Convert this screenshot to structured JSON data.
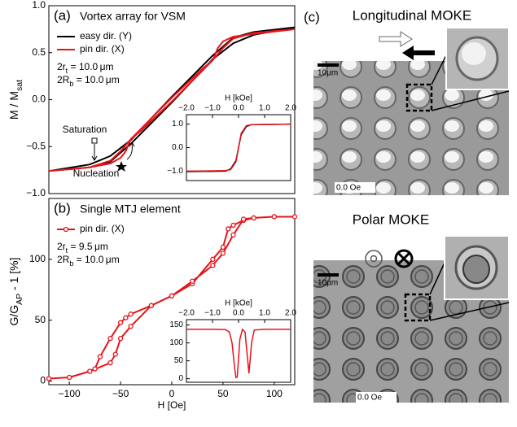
{
  "chart_data": [
    {
      "type": "line",
      "panel": "(a)",
      "title": "Vortex array for VSM",
      "ylabel": [
        "M / M",
        "sat"
      ],
      "xlim": [
        -120,
        120
      ],
      "ylim": [
        -1,
        1
      ],
      "yticks": [
        {
          "value": -1,
          "label": "−1.0"
        },
        {
          "value": -0.5,
          "label": "−0.5"
        },
        {
          "value": 0,
          "label": "0.0"
        },
        {
          "value": 0.5,
          "label": "0.5"
        },
        {
          "value": 1,
          "label": "1.0"
        }
      ],
      "legend": "upper left",
      "notes": [
        [
          "2r",
          "t",
          " = 10.0 μm"
        ],
        [
          "2R",
          "b",
          " = 10.0 μm"
        ]
      ],
      "labels": [
        "Saturation",
        "Nucleation"
      ],
      "series": [
        {
          "name": "easy dir. (Y)",
          "color": "#000000",
          "x": [
            -120,
            -80,
            -60,
            -40,
            -20,
            0,
            20,
            40,
            60,
            80,
            120,
            80,
            60,
            40,
            20,
            0,
            -20,
            -40,
            -60,
            -80,
            -120
          ],
          "values": [
            -0.76,
            -0.72,
            -0.66,
            -0.47,
            -0.25,
            -0.03,
            0.2,
            0.43,
            0.6,
            0.69,
            0.77,
            0.72,
            0.66,
            0.47,
            0.25,
            0.03,
            -0.2,
            -0.43,
            -0.6,
            -0.69,
            -0.76
          ]
        },
        {
          "name": "pin dir. (X)",
          "color": "#e8141b",
          "x": [
            -120,
            -80,
            -60,
            -50,
            -45,
            -40,
            -30,
            0,
            20,
            40,
            50,
            60,
            80,
            120,
            80,
            60,
            50,
            45,
            40,
            30,
            0,
            -20,
            -40,
            -50,
            -60,
            -80,
            -120
          ],
          "values": [
            -0.76,
            -0.72,
            -0.68,
            -0.62,
            -0.55,
            -0.42,
            -0.33,
            -0.02,
            0.2,
            0.42,
            0.55,
            0.65,
            0.71,
            0.75,
            0.7,
            0.67,
            0.62,
            0.55,
            0.42,
            0.33,
            0.02,
            -0.2,
            -0.42,
            -0.55,
            -0.65,
            -0.72,
            -0.76
          ]
        }
      ]
    },
    {
      "type": "line",
      "xlabel": "H [kOe]",
      "xlim": [
        -2,
        2
      ],
      "ylim": [
        -1.4,
        1.4
      ],
      "xticks": [
        {
          "value": -2,
          "label": "−2.0"
        },
        {
          "value": -1,
          "label": "−1.0"
        },
        {
          "value": 0,
          "label": "0.0"
        },
        {
          "value": 1,
          "label": "1.0"
        },
        {
          "value": 2,
          "label": "2.0"
        }
      ],
      "yticks": [
        {
          "value": -1,
          "label": "−1.0"
        },
        {
          "value": 0,
          "label": "0.0"
        },
        {
          "value": 1,
          "label": "1.0"
        }
      ],
      "series": [
        {
          "name": "easy dir. (Y)",
          "color": "#000000",
          "x": [
            -2,
            -0.5,
            -0.3,
            -0.1,
            0,
            0.1,
            0.3,
            0.5,
            2
          ],
          "values": [
            -1.02,
            -1.0,
            -0.9,
            -0.55,
            0,
            0.55,
            0.9,
            0.98,
            1.0
          ]
        },
        {
          "name": "pin dir. (X)",
          "color": "#e8141b",
          "x": [
            -2,
            -0.5,
            -0.3,
            -0.1,
            0,
            0.1,
            0.3,
            0.5,
            2
          ],
          "values": [
            -1.0,
            -0.98,
            -0.93,
            -0.6,
            0,
            0.6,
            0.93,
            0.98,
            1.0
          ]
        }
      ]
    },
    {
      "type": "line",
      "panel": "(b)",
      "title": "Single MTJ element",
      "xlabel": "H [Oe]",
      "ylabel": [
        "G/G",
        "AP",
        " - 1 [%]"
      ],
      "xlim": [
        -120,
        120
      ],
      "ylim": [
        -3,
        150
      ],
      "xticks": [
        {
          "value": -100,
          "label": "−100"
        },
        {
          "value": -50,
          "label": "−50"
        },
        0,
        50,
        100
      ],
      "yticks": [
        0,
        50,
        100
      ],
      "legend": "upper left",
      "markers": true,
      "notes": [
        [
          "2r",
          "t",
          " = 9.5 μm"
        ],
        [
          "2R",
          "b",
          " = 10.0 μm"
        ]
      ],
      "series": [
        {
          "name": "pin dir. (X)",
          "color": "#e8141b",
          "x": [
            -120,
            -100,
            -80,
            -75,
            -70,
            -60,
            -50,
            -45,
            -40,
            -20,
            0,
            20,
            40,
            50,
            55,
            60,
            70,
            80,
            100,
            120,
            100,
            80,
            70,
            60,
            50,
            40,
            20,
            0,
            -20,
            -40,
            -50,
            -55,
            -60,
            -80,
            -100,
            -120
          ],
          "values": [
            2,
            3,
            8,
            10,
            20,
            35,
            48,
            52,
            55,
            62,
            70,
            80,
            100,
            110,
            125,
            128,
            132,
            134,
            135,
            135,
            135,
            134,
            133,
            120,
            105,
            95,
            82,
            70,
            62,
            45,
            35,
            22,
            15,
            8,
            3,
            2
          ]
        }
      ]
    },
    {
      "type": "line",
      "xlabel": "H [kOe]",
      "xlim": [
        -2,
        2
      ],
      "ylim": [
        -10,
        165
      ],
      "xticks": [
        {
          "value": -2,
          "label": "−2.0"
        },
        {
          "value": -1,
          "label": "−1.0"
        },
        {
          "value": 0,
          "label": "0.0"
        },
        {
          "value": 1,
          "label": "1.0"
        },
        {
          "value": 2,
          "label": "2.0"
        }
      ],
      "yticks": [
        0,
        50,
        100,
        150
      ],
      "series": [
        {
          "name": "pin dir. (X)",
          "color": "#e8141b",
          "x": [
            -2,
            -1,
            -0.5,
            -0.35,
            -0.25,
            -0.15,
            -0.1,
            -0.05,
            0.05,
            0.15,
            0.25,
            0.3,
            0.4,
            0.5,
            0.6,
            1,
            2
          ],
          "values": [
            138,
            138,
            137,
            130,
            100,
            30,
            3,
            5,
            110,
            138,
            130,
            90,
            15,
            100,
            136,
            138,
            138
          ]
        }
      ]
    }
  ],
  "panel_c": {
    "label": "(c)",
    "images": [
      {
        "title": "Longitudinal MOKE",
        "scale": "10μm",
        "field": "0.0 Oe"
      },
      {
        "title": "Polar MOKE",
        "scale": "10μm",
        "field": "0.0 Oe"
      }
    ]
  }
}
